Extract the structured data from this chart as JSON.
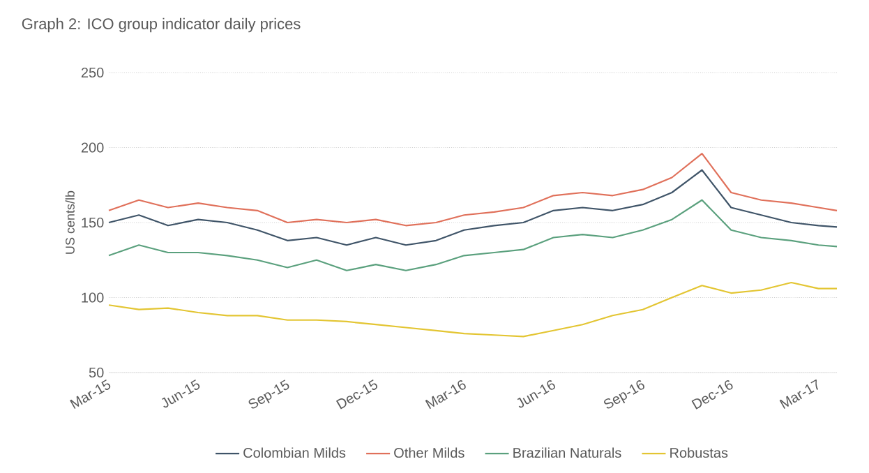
{
  "chart_data": {
    "type": "line",
    "title": "Graph 2: ICO group indicator daily prices",
    "ylabel": "US cents/lb",
    "x": [
      "2015-03-01",
      "2015-04-01",
      "2015-05-01",
      "2015-06-01",
      "2015-07-01",
      "2015-08-01",
      "2015-09-01",
      "2015-10-01",
      "2015-11-01",
      "2015-12-01",
      "2016-01-01",
      "2016-02-01",
      "2016-03-01",
      "2016-04-01",
      "2016-05-01",
      "2016-06-01",
      "2016-07-01",
      "2016-08-01",
      "2016-09-01",
      "2016-10-01",
      "2016-11-01",
      "2016-12-01",
      "2017-01-01",
      "2017-02-01",
      "2017-03-01",
      "2017-03-20"
    ],
    "series": [
      {
        "name": "Colombian Milds",
        "color": "#3f5468",
        "values": [
          150,
          155,
          148,
          152,
          150,
          145,
          138,
          140,
          135,
          140,
          135,
          138,
          145,
          148,
          150,
          158,
          160,
          158,
          162,
          170,
          185,
          160,
          155,
          150,
          148,
          147
        ]
      },
      {
        "name": "Other Milds",
        "color": "#e0705a",
        "values": [
          158,
          165,
          160,
          163,
          160,
          158,
          150,
          152,
          150,
          152,
          148,
          150,
          155,
          157,
          160,
          168,
          170,
          168,
          172,
          180,
          196,
          170,
          165,
          163,
          160,
          158
        ]
      },
      {
        "name": "Brazilian Naturals",
        "color": "#5aa07d",
        "values": [
          128,
          135,
          130,
          130,
          128,
          125,
          120,
          125,
          118,
          122,
          118,
          122,
          128,
          130,
          132,
          140,
          142,
          140,
          145,
          152,
          165,
          145,
          140,
          138,
          135,
          134
        ]
      },
      {
        "name": "Robustas",
        "color": "#e3c532",
        "values": [
          95,
          92,
          93,
          90,
          88,
          88,
          85,
          85,
          84,
          82,
          80,
          78,
          76,
          75,
          74,
          78,
          82,
          88,
          92,
          100,
          108,
          103,
          105,
          110,
          106,
          106
        ]
      }
    ],
    "xlim": [
      "2015-03-01",
      "2017-03-20"
    ],
    "xticks": [
      {
        "value": "2015-03-01",
        "label": "Mar-15"
      },
      {
        "value": "2015-06-01",
        "label": "Jun-15"
      },
      {
        "value": "2015-09-01",
        "label": "Sep-15"
      },
      {
        "value": "2015-12-01",
        "label": "Dec-15"
      },
      {
        "value": "2016-03-01",
        "label": "Mar-16"
      },
      {
        "value": "2016-06-01",
        "label": "Jun-16"
      },
      {
        "value": "2016-09-01",
        "label": "Sep-16"
      },
      {
        "value": "2016-12-01",
        "label": "Dec-16"
      },
      {
        "value": "2017-03-01",
        "label": "Mar-17"
      }
    ],
    "ylim": [
      50,
      250
    ],
    "yticks": [
      50,
      100,
      150,
      200,
      250
    ],
    "grid": "y",
    "legend": "bottom",
    "marker": "none",
    "line_style": "solid"
  }
}
